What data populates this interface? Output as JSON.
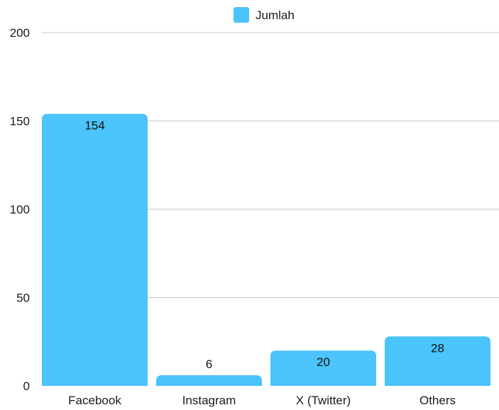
{
  "chart_data": {
    "type": "bar",
    "categories": [
      "Facebook",
      "Instagram",
      "X (Twitter)",
      "Others"
    ],
    "series": [
      {
        "name": "Jumlah",
        "values": [
          154,
          6,
          20,
          28
        ]
      }
    ],
    "ylim": [
      0,
      200
    ],
    "yticks": [
      0,
      50,
      100,
      150,
      200
    ],
    "grid": true,
    "legend": "top-center",
    "data_labels": true,
    "bar_color": "#4bc3fb"
  }
}
